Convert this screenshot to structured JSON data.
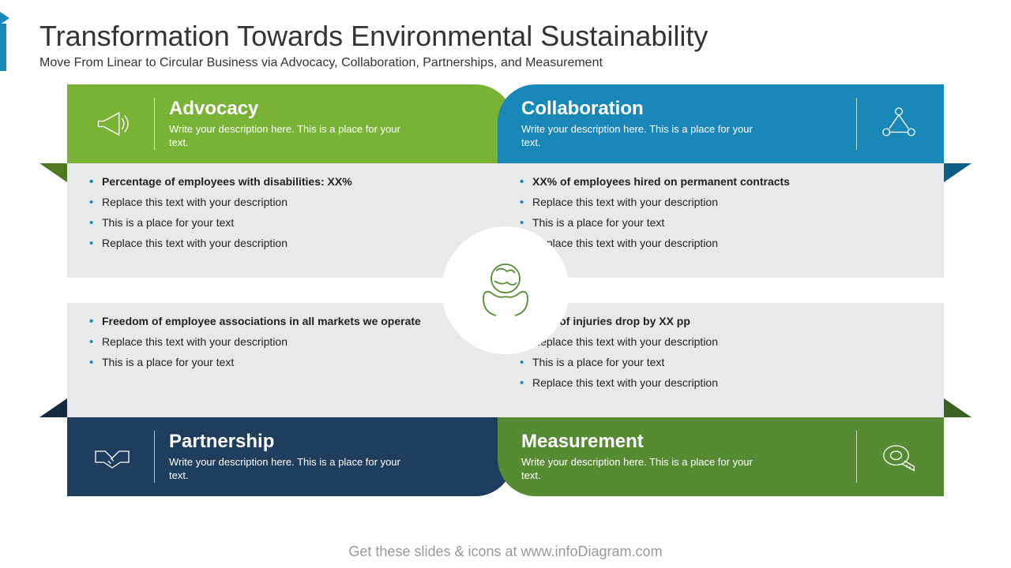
{
  "title": "Transformation Towards Environmental Sustainability",
  "subtitle": "Move From Linear to Circular Business via Advocacy, Collaboration, Partnerships, and Measurement",
  "footer": "Get these slides & icons at www.infoDiagram.com",
  "quads": {
    "advocacy": {
      "title": "Advocacy",
      "desc": "Write your description here. This is a place for your text.",
      "color": "#79b335",
      "fold_color": "#4d7a1f",
      "bullets": [
        {
          "text": "Percentage of employees with disabilities: XX%",
          "bold": true
        },
        {
          "text": "Replace this text with your description",
          "bold": false
        },
        {
          "text": "This is a place for your text",
          "bold": false
        },
        {
          "text": "Replace this text with your description",
          "bold": false
        }
      ]
    },
    "collaboration": {
      "title": "Collaboration",
      "desc": "Write your description here. This is a place for your text.",
      "color": "#1a87b9",
      "fold_color": "#0e5d82",
      "bullets": [
        {
          "text": "XX% of employees hired on permanent contracts",
          "bold": true
        },
        {
          "text": "Replace this text with your description",
          "bold": false
        },
        {
          "text": "This is a place for your text",
          "bold": false
        },
        {
          "text": "Replace this text with your description",
          "bold": false
        }
      ]
    },
    "partnership": {
      "title": "Partnership",
      "desc": "Write your description here. This is a place for your text.",
      "color": "#1f3d5c",
      "fold_color": "#142a40",
      "bullets": [
        {
          "text": "Freedom of employee associations in all markets we operate",
          "bold": true
        },
        {
          "text": "Replace this text with your description",
          "bold": false
        },
        {
          "text": "This is a place for your text",
          "bold": false
        }
      ]
    },
    "measurement": {
      "title": "Measurement",
      "desc": "Write your description here. This is a place for your text.",
      "color": "#568b34",
      "fold_color": "#3a6122",
      "bullets": [
        {
          "text": "Rate of injuries drop by XX pp",
          "bold": true
        },
        {
          "text": "Replace this text with your description",
          "bold": false
        },
        {
          "text": "This is a place for your text",
          "bold": false
        },
        {
          "text": "Replace this text with your description",
          "bold": false
        }
      ]
    }
  }
}
